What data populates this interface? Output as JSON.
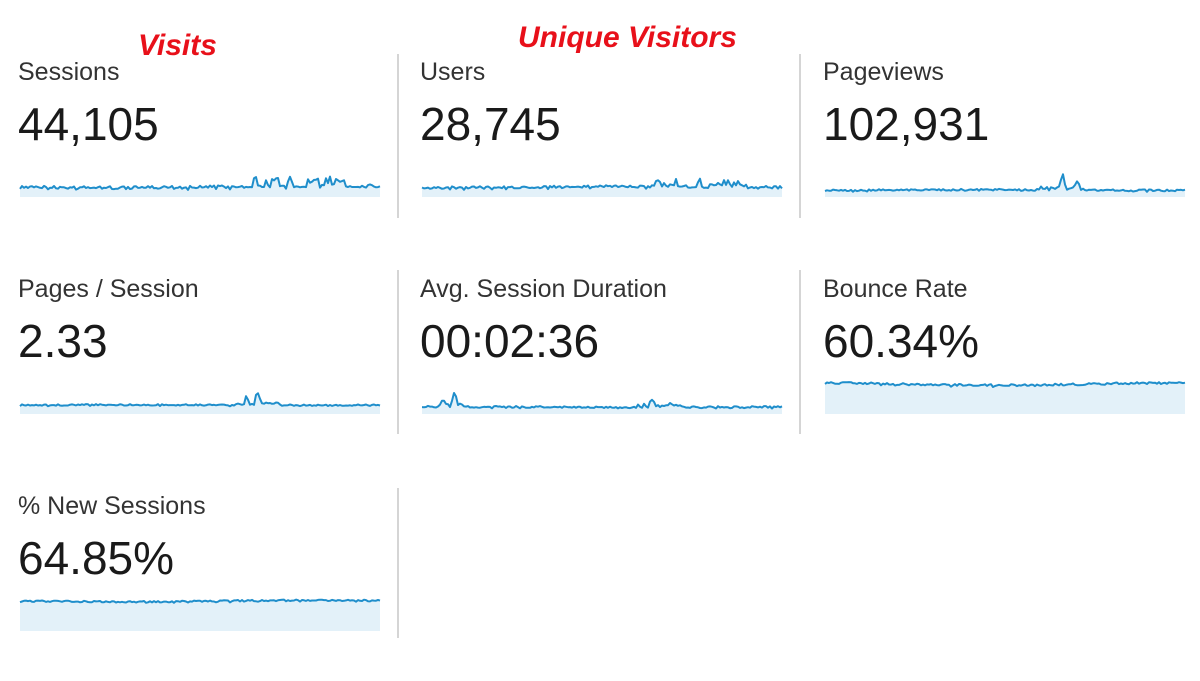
{
  "annotations": {
    "visits": "Visits",
    "unique_visitors": "Unique Visitors",
    "color": "#e8101a"
  },
  "colors": {
    "line": "#1f8ecb",
    "fill": "#e3f1f9",
    "divider": "#d5d5d5"
  },
  "metrics": [
    {
      "label": "Sessions",
      "value": "44,105",
      "sparkline_icon": "sessions-sparkline"
    },
    {
      "label": "Users",
      "value": "28,745",
      "sparkline_icon": "users-sparkline"
    },
    {
      "label": "Pageviews",
      "value": "102,931",
      "sparkline_icon": "pageviews-sparkline"
    },
    {
      "label": "Pages / Session",
      "value": "2.33",
      "sparkline_icon": "pages-per-session-sparkline"
    },
    {
      "label": "Avg. Session Duration",
      "value": "00:02:36",
      "sparkline_icon": "avg-session-duration-sparkline"
    },
    {
      "label": "Bounce Rate",
      "value": "60.34%",
      "sparkline_icon": "bounce-rate-sparkline"
    },
    {
      "label": "% New Sessions",
      "value": "64.85%",
      "sparkline_icon": "new-sessions-sparkline"
    }
  ]
}
